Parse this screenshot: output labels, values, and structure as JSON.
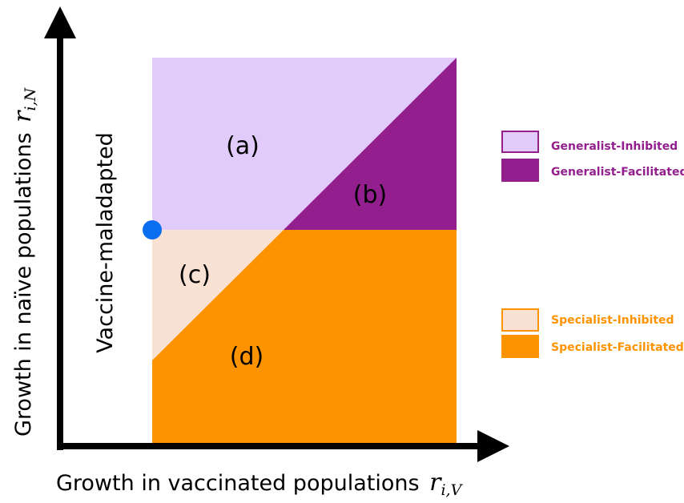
{
  "axes": {
    "x_label": "Growth in vaccinated populations",
    "x_symbol": "r",
    "x_subscript": "i,V",
    "y_label": "Growth in naïve populations",
    "y_symbol": "r",
    "y_subscript": "i,N"
  },
  "regions": [
    {
      "label": "(a)"
    },
    {
      "label": "(b)"
    },
    {
      "label": "(c)"
    },
    {
      "label": "(d)"
    }
  ],
  "annotation": "Vaccine-maladapted",
  "legend": [
    {
      "label": "Generalist-Inhibited"
    },
    {
      "label": "Generalist-Facilitated"
    },
    {
      "label": "Specialist-Inhibited"
    },
    {
      "label": "Specialist-Facilitated"
    }
  ]
}
